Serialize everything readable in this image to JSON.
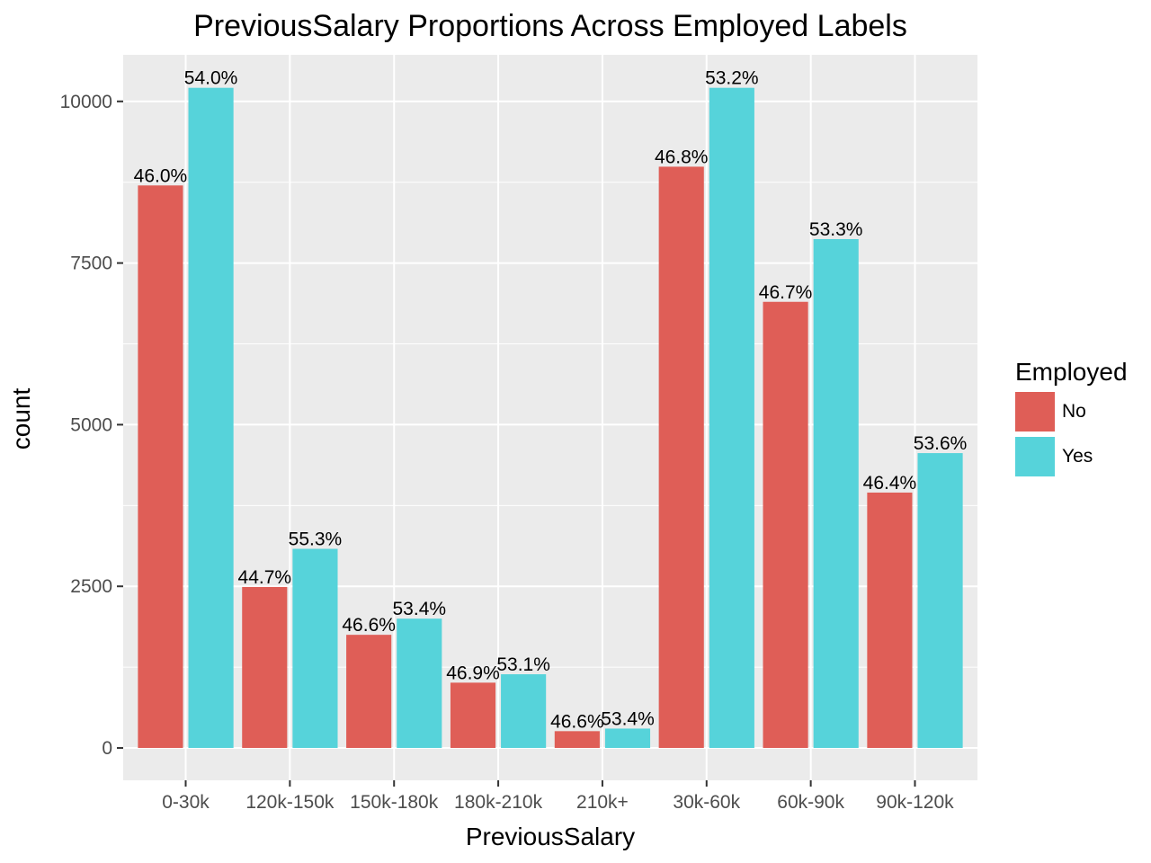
{
  "chart_data": {
    "type": "bar",
    "title": "PreviousSalary Proportions Across Employed Labels",
    "xlabel": "PreviousSalary",
    "ylabel": "count",
    "categories": [
      "0-30k",
      "120k-150k",
      "150k-180k",
      "180k-210k",
      "210k+",
      "30k-60k",
      "60k-90k",
      "90k-120k"
    ],
    "series": [
      {
        "name": "No",
        "color": "#DF5E57",
        "values": [
          8700,
          2490,
          1750,
          1010,
          260,
          8990,
          6900,
          3950
        ],
        "labels": [
          "46.0%",
          "44.7%",
          "46.6%",
          "46.9%",
          "46.6%",
          "46.8%",
          "46.7%",
          "46.4%"
        ]
      },
      {
        "name": "Yes",
        "color": "#56D3DA",
        "values": [
          10210,
          3080,
          2000,
          1140,
          300,
          10210,
          7870,
          4560
        ],
        "labels": [
          "54.0%",
          "55.3%",
          "53.4%",
          "53.1%",
          "53.4%",
          "53.2%",
          "53.3%",
          "53.6%"
        ]
      }
    ],
    "ylim": [
      -500,
      10720
    ],
    "yticks": [
      0,
      2500,
      5000,
      7500,
      10000
    ],
    "ytick_labels": [
      "0",
      "2500",
      "5000",
      "7500",
      "10000"
    ],
    "grid": true,
    "legend": {
      "title": "Employed",
      "position": "right"
    },
    "panel_background": "#EBEBEB"
  }
}
